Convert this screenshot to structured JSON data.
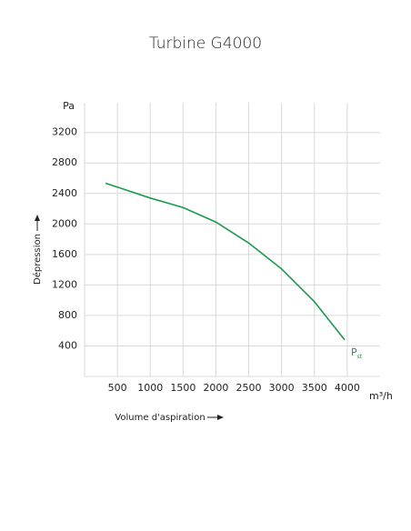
{
  "chart_data": {
    "type": "line",
    "title": "Turbine G4000",
    "x_label": "Volume d'aspiration",
    "y_label": "Dépression",
    "x_unit": "m³/h",
    "y_unit": "Pa",
    "x": [
      320,
      1000,
      1500,
      2000,
      2500,
      3000,
      3500,
      3960
    ],
    "series": [
      {
        "name": "P",
        "name_subscript": "st",
        "color": "#1a9a4a",
        "values": [
          2535,
          2340,
          2215,
          2025,
          1750,
          1410,
          980,
          480
        ]
      }
    ],
    "xlim": [
      0,
      4500
    ],
    "xticks": [
      500,
      1000,
      1500,
      2000,
      2500,
      3000,
      3500,
      4000
    ],
    "ylim": [
      0,
      3590
    ],
    "yticks": [
      400,
      800,
      1200,
      1600,
      2000,
      2400,
      2800,
      3200
    ],
    "grid": true
  }
}
